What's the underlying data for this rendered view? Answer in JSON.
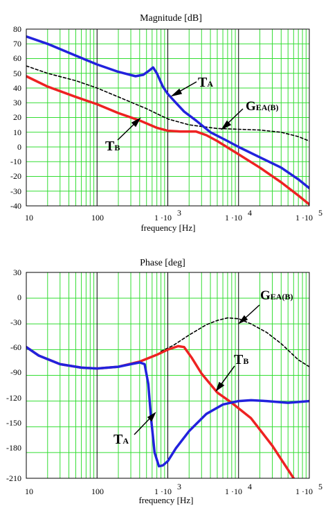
{
  "colors": {
    "minor_grid": "#33dd33",
    "major_grid": "#000000",
    "t_a": "#2222dd",
    "t_b": "#ee2222",
    "g_ea": "#000000"
  },
  "chart_data": [
    {
      "type": "line",
      "title": "Magnitude [dB]",
      "xlabel": "frequency [Hz]",
      "ylabel": "",
      "x_scale": "log",
      "xlim": [
        10,
        100000
      ],
      "ylim": [
        -40,
        80
      ],
      "grid": true,
      "xtick_labels": [
        "10",
        "100",
        "1 ·10",
        "3",
        "1 ·10",
        "4",
        "1 ·10",
        "5"
      ],
      "ytick_labels": [
        "80",
        "70",
        "60",
        "50",
        "40",
        "30",
        "20",
        "10",
        "0",
        "-10",
        "-20",
        "-30",
        "-40"
      ],
      "ytick_values": [
        80,
        70,
        60,
        50,
        40,
        30,
        20,
        10,
        0,
        -10,
        -20,
        -30,
        -40
      ],
      "series": [
        {
          "name": "TA",
          "style": "solid",
          "color": "#2222dd",
          "x": [
            10,
            20,
            50,
            100,
            200,
            350,
            450,
            550,
            620,
            700,
            850,
            1000,
            1300,
            1700,
            2500,
            4000,
            7000,
            10000,
            20000,
            40000,
            70000,
            100000
          ],
          "y": [
            75,
            70,
            62,
            56,
            51,
            48,
            49,
            52,
            54,
            50,
            41,
            36,
            30,
            24,
            18,
            10,
            4,
            0,
            -7,
            -14,
            -22,
            -28
          ]
        },
        {
          "name": "TB",
          "style": "solid",
          "color": "#ee2222",
          "x": [
            10,
            20,
            50,
            100,
            200,
            400,
            700,
            1000,
            1500,
            2500,
            3500,
            5000,
            10000,
            20000,
            40000,
            70000,
            100000
          ],
          "y": [
            48,
            41,
            34,
            29,
            23,
            18,
            13,
            11,
            10.5,
            10.5,
            8,
            4,
            -5,
            -14,
            -24,
            -33,
            -39
          ]
        },
        {
          "name": "GEA(B)",
          "style": "dashed",
          "color": "#000000",
          "x": [
            10,
            20,
            50,
            100,
            200,
            500,
            1000,
            2000,
            5000,
            10000,
            20000,
            40000,
            70000,
            100000
          ],
          "y": [
            55,
            50,
            45,
            40,
            34,
            26,
            19,
            15,
            12.5,
            12,
            11.5,
            10,
            7,
            4
          ]
        }
      ],
      "annotations": [
        {
          "text": "T",
          "sub": "A",
          "x": 1800,
          "y": 46
        },
        {
          "text": "G",
          "sub": "EA(B)",
          "x": 12000,
          "y": 27
        },
        {
          "text": "T",
          "sub": "B",
          "x": 35,
          "y": -2
        }
      ]
    },
    {
      "type": "line",
      "title": "Phase [deg]",
      "xlabel": "frequency [Hz]",
      "ylabel": "",
      "x_scale": "log",
      "xlim": [
        10,
        100000
      ],
      "ylim": [
        -210,
        30
      ],
      "grid": true,
      "xtick_labels": [
        "10",
        "100",
        "1 ·10",
        "3",
        "1 ·10",
        "4",
        "1 ·10",
        "5"
      ],
      "ytick_labels": [
        "30",
        "0",
        "-30",
        "-60",
        "-90",
        "-120",
        "-150",
        "-180",
        "-210"
      ],
      "ytick_values": [
        30,
        0,
        -30,
        -60,
        -90,
        -120,
        -150,
        -180,
        -210
      ],
      "series": [
        {
          "name": "TA",
          "style": "solid",
          "color": "#2222dd",
          "x": [
            10,
            15,
            30,
            60,
            100,
            200,
            300,
            400,
            470,
            530,
            580,
            650,
            750,
            850,
            1000,
            1300,
            2000,
            3500,
            6000,
            10000,
            15000,
            25000,
            50000,
            100000
          ],
          "y": [
            -57,
            -67,
            -77,
            -81,
            -82,
            -80,
            -77,
            -75,
            -77,
            -100,
            -140,
            -180,
            -196,
            -195,
            -190,
            -175,
            -155,
            -135,
            -124,
            -120,
            -119,
            -120,
            -122,
            -120
          ]
        },
        {
          "name": "TB",
          "style": "solid",
          "color": "#ee2222",
          "x": [
            10,
            15,
            30,
            60,
            100,
            200,
            400,
            700,
            1000,
            1400,
            1700,
            2200,
            3000,
            5000,
            8000,
            15000,
            30000,
            60000
          ],
          "y": [
            -57,
            -67,
            -77,
            -81,
            -82,
            -80,
            -74,
            -66,
            -60,
            -56,
            -57,
            -70,
            -88,
            -110,
            -122,
            -140,
            -172,
            -210
          ]
        },
        {
          "name": "GEA(B)",
          "style": "dashed",
          "color": "#000000",
          "x": [
            800,
            1200,
            2000,
            3500,
            5000,
            7000,
            10000,
            15000,
            25000,
            40000,
            70000,
            100000
          ],
          "y": [
            -62,
            -55,
            -43,
            -31,
            -26,
            -23,
            -24,
            -30,
            -40,
            -53,
            -72,
            -80
          ]
        }
      ],
      "annotations": [
        {
          "text": "G",
          "sub": "EA(B)",
          "x": 35000,
          "y": -3
        },
        {
          "text": "T",
          "sub": "B",
          "x": 7000,
          "y": -77
        },
        {
          "text": "T",
          "sub": "A",
          "x": 200,
          "y": -166
        }
      ]
    }
  ]
}
